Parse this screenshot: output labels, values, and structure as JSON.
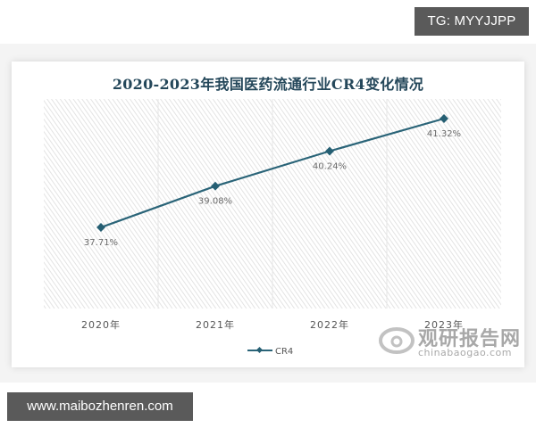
{
  "overlay": {
    "top_tag": "TG: MYYJJPP",
    "bottom_url": "www.maibozhenren.com"
  },
  "watermark": {
    "cn": "观研报告网",
    "en": "chinabaogao.com"
  },
  "colors": {
    "line": "#2a6478",
    "marker": "#255f73",
    "title": "#24475a",
    "label": "#6b6b6b",
    "hatch": "#dcdcdc",
    "tag_bg": "#5a5a5a"
  },
  "chart_data": {
    "type": "line",
    "title": "2020-2023年我国医药流通行业CR4变化情况",
    "categories": [
      "2020年",
      "2021年",
      "2022年",
      "2023年"
    ],
    "series": [
      {
        "name": "CR4",
        "values": [
          37.71,
          39.08,
          40.24,
          41.32
        ],
        "labels": [
          "37.71%",
          "39.08%",
          "40.24%",
          "41.32%"
        ]
      }
    ],
    "xlabel": "",
    "ylabel": "",
    "y_axis_visible": false,
    "grid": false,
    "background": "diagonal-hatch",
    "legend_position": "bottom",
    "data_labels": "below"
  }
}
